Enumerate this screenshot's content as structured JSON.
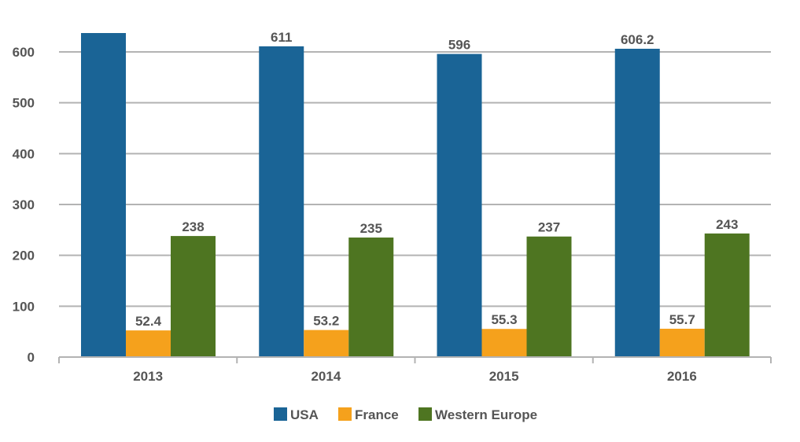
{
  "chart_data": {
    "type": "bar",
    "categories": [
      "2013",
      "2014",
      "2015",
      "2016"
    ],
    "series": [
      {
        "name": "USA",
        "color": "#1a6496",
        "values": [
          639,
          611,
          596,
          606.2
        ],
        "labels": [
          "",
          "611",
          "596",
          "606.2"
        ]
      },
      {
        "name": "France",
        "color": "#f5a11c",
        "values": [
          52.4,
          53.2,
          55.3,
          55.7
        ],
        "labels": [
          "52.4",
          "53.2",
          "55.3",
          "55.7"
        ]
      },
      {
        "name": "Western Europe",
        "color": "#4e7521",
        "values": [
          238,
          235,
          237,
          243
        ],
        "labels": [
          "238",
          "235",
          "237",
          "243"
        ]
      }
    ],
    "y_ticks": [
      "0",
      "100",
      "200",
      "300",
      "400",
      "500",
      "600"
    ],
    "ylim": [
      0,
      640
    ],
    "grid": true,
    "legend_position": "bottom"
  }
}
